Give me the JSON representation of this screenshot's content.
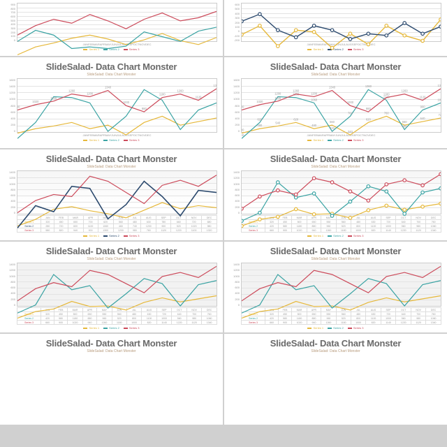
{
  "title": "SlideSalad- Data Chart Monster",
  "subtitle": "SlideSalad: Data Chart Monster",
  "months": [
    "JAN",
    "FEB",
    "MAR",
    "APR",
    "MAY",
    "JUN",
    "JUL",
    "AUG",
    "SEP",
    "OCT",
    "NOV",
    "DEC"
  ],
  "colors": {
    "yellow": "#e6b83a",
    "teal": "#3aa3a3",
    "red": "#cc4a5a",
    "navy": "#2c4a6e",
    "grid": "#e3e3e3",
    "border": "#cccccc",
    "text": "#6a6a6a"
  },
  "legend_labels": [
    "Series 1",
    "Series 2",
    "Series 3"
  ],
  "charts": [
    {
      "id": "top-left",
      "type": "line",
      "ylim": [
        0,
        900
      ],
      "ytick_step": 100,
      "series": [
        {
          "color": "#e6b83a",
          "width": 1.2,
          "values": [
            250,
            350,
            400,
            460,
            500,
            450,
            380,
            440,
            520,
            430,
            380,
            470
          ]
        },
        {
          "color": "#3aa3a3",
          "width": 1.2,
          "values": [
            420,
            560,
            500,
            330,
            350,
            330,
            360,
            540,
            480,
            420,
            550,
            600
          ]
        },
        {
          "color": "#cc4a5a",
          "width": 1.2,
          "values": [
            500,
            620,
            700,
            650,
            760,
            680,
            580,
            700,
            780,
            680,
            720,
            800
          ]
        }
      ],
      "legend_colors": [
        "#e6b83a",
        "#3aa3a3",
        "#cc4a5a"
      ]
    },
    {
      "id": "top-right",
      "type": "line",
      "ylim": [
        -200,
        600
      ],
      "ytick_step": 100,
      "has_markers": true,
      "series": [
        {
          "color": "#e6b83a",
          "width": 1.4,
          "marker": true,
          "values": [
            250,
            350,
            120,
            300,
            280,
            100,
            260,
            140,
            350,
            240,
            180,
            420
          ]
        },
        {
          "color": "#2c4a6e",
          "width": 1.4,
          "marker": true,
          "values": [
            400,
            480,
            300,
            220,
            350,
            300,
            200,
            260,
            240,
            380,
            260,
            340
          ]
        }
      ],
      "legend_colors": [
        "#e6b83a",
        "#2c4a6e",
        "#cc4a5a"
      ]
    },
    {
      "id": "r1-left",
      "type": "line",
      "ylim": [
        0,
        1600
      ],
      "ytick_step": 200,
      "series": [
        {
          "color": "#e6b83a",
          "width": 1.2,
          "values": [
            380,
            480,
            540,
            620,
            480,
            560,
            340,
            620,
            760,
            560,
            640,
            720
          ]
        },
        {
          "color": "#3aa3a3",
          "width": 1.2,
          "values": [
            260,
            620,
            1200,
            1180,
            1060,
            420,
            760,
            1360,
            1120,
            460,
            900,
            1060
          ]
        },
        {
          "color": "#cc4a5a",
          "width": 1.2,
          "has_labels": true,
          "values": [
            900,
            1020,
            1100,
            1260,
            1200,
            1340,
            1000,
            860,
            1180,
            1260,
            1120,
            1380
          ]
        }
      ],
      "legend_colors": [
        "#e6b83a",
        "#3aa3a3",
        "#cc4a5a"
      ]
    },
    {
      "id": "r1-right",
      "type": "line",
      "ylim": [
        0,
        1600
      ],
      "ytick_step": 200,
      "has_labels": true,
      "series": [
        {
          "color": "#e6b83a",
          "width": 1.2,
          "values": [
            380,
            480,
            540,
            620,
            480,
            560,
            340,
            620,
            760,
            560,
            640,
            720
          ]
        },
        {
          "color": "#3aa3a3",
          "width": 1.2,
          "values": [
            260,
            620,
            1200,
            1180,
            1060,
            420,
            760,
            1360,
            1120,
            460,
            900,
            1060
          ]
        },
        {
          "color": "#cc4a5a",
          "width": 1.2,
          "values": [
            900,
            1020,
            1100,
            1260,
            1200,
            1340,
            1000,
            860,
            1180,
            1260,
            1120,
            1380
          ]
        }
      ],
      "legend_colors": [
        "#e6b83a",
        "#3aa3a3",
        "#cc4a5a"
      ]
    },
    {
      "id": "r2-left",
      "type": "line",
      "style": "gradient",
      "ylim": [
        0,
        1400
      ],
      "ytick_step": 200,
      "has_table": true,
      "series": [
        {
          "color": "#e6b83a",
          "width": 1.2,
          "values": [
            320,
            450,
            650,
            700,
            620,
            560,
            480,
            630,
            780,
            660,
            720,
            680
          ]
        },
        {
          "color": "#2c4a6e",
          "width": 1.6,
          "values": [
            280,
            720,
            600,
            1100,
            1060,
            460,
            740,
            1200,
            900,
            520,
            1020,
            980
          ]
        },
        {
          "color": "#cc4a5a",
          "width": 1.2,
          "values": [
            580,
            820,
            940,
            900,
            1300,
            1200,
            980,
            760,
            1120,
            1220,
            1100,
            1320
          ]
        }
      ],
      "legend_colors": [
        "#e6b83a",
        "#2c4a6e",
        "#cc4a5a"
      ]
    },
    {
      "id": "r2-right",
      "type": "line",
      "style": "gradient",
      "ylim": [
        0,
        1400
      ],
      "ytick_step": 200,
      "has_table": true,
      "has_markers": true,
      "series": [
        {
          "color": "#e6b83a",
          "width": 1.2,
          "marker": true,
          "values": [
            320,
            450,
            500,
            650,
            550,
            560,
            480,
            630,
            720,
            640,
            700,
            760
          ]
        },
        {
          "color": "#3aa3a3",
          "width": 1.2,
          "marker": true,
          "values": [
            420,
            580,
            1180,
            880,
            960,
            520,
            800,
            1100,
            1000,
            560,
            980,
            1060
          ]
        },
        {
          "color": "#cc4a5a",
          "width": 1.2,
          "marker": true,
          "values": [
            660,
            900,
            1020,
            940,
            1260,
            1180,
            1000,
            820,
            1140,
            1220,
            1120,
            1340
          ]
        }
      ],
      "legend_colors": [
        "#e6b83a",
        "#3aa3a3",
        "#cc4a5a"
      ]
    },
    {
      "id": "r3-left",
      "type": "line",
      "style": "grey",
      "ylim": [
        0,
        1400
      ],
      "ytick_step": 200,
      "has_table": true,
      "series": [
        {
          "color": "#e6b83a",
          "width": 1.2,
          "values": [
            320,
            450,
            500,
            650,
            550,
            560,
            480,
            630,
            720,
            640,
            700,
            760
          ]
        },
        {
          "color": "#3aa3a3",
          "width": 1.2,
          "values": [
            420,
            580,
            1180,
            880,
            960,
            520,
            800,
            1100,
            1000,
            560,
            980,
            1060
          ]
        },
        {
          "color": "#cc4a5a",
          "width": 1.2,
          "values": [
            660,
            900,
            1020,
            940,
            1260,
            1180,
            1000,
            820,
            1140,
            1220,
            1120,
            1340
          ]
        }
      ],
      "legend_colors": [
        "#e6b83a",
        "#3aa3a3",
        "#cc4a5a"
      ]
    },
    {
      "id": "r3-right",
      "type": "line",
      "style": "grey",
      "ylim": [
        0,
        1400
      ],
      "ytick_step": 200,
      "has_table": true,
      "series": [
        {
          "color": "#e6b83a",
          "width": 1.2,
          "values": [
            320,
            450,
            500,
            650,
            550,
            560,
            480,
            630,
            720,
            640,
            700,
            760
          ]
        },
        {
          "color": "#3aa3a3",
          "width": 1.2,
          "values": [
            420,
            580,
            1180,
            880,
            960,
            520,
            800,
            1100,
            1000,
            560,
            980,
            1060
          ]
        },
        {
          "color": "#cc4a5a",
          "width": 1.2,
          "values": [
            660,
            900,
            1020,
            940,
            1260,
            1180,
            1000,
            820,
            1140,
            1220,
            1120,
            1340
          ]
        }
      ],
      "legend_colors": [
        "#e6b83a",
        "#3aa3a3",
        "#cc4a5a"
      ]
    }
  ]
}
